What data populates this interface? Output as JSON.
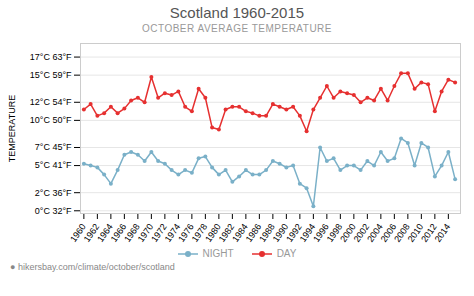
{
  "chart_data": {
    "type": "line",
    "title": "Scotland 1960-2015",
    "subtitle": "OCTOBER AVERAGE TEMPERATURE",
    "ylabel": "TEMPERATURE",
    "annotations": [
      "● hikersbay.com/climate/october/scotland"
    ],
    "x": [
      1960,
      1961,
      1962,
      1963,
      1964,
      1965,
      1966,
      1967,
      1968,
      1969,
      1970,
      1971,
      1972,
      1973,
      1974,
      1975,
      1976,
      1977,
      1978,
      1979,
      1980,
      1981,
      1982,
      1983,
      1984,
      1985,
      1986,
      1987,
      1988,
      1989,
      1990,
      1991,
      1992,
      1993,
      1994,
      1995,
      1996,
      1997,
      1998,
      1999,
      2000,
      2001,
      2002,
      2003,
      2004,
      2005,
      2006,
      2007,
      2008,
      2009,
      2010,
      2011,
      2012,
      2013,
      2014,
      2015
    ],
    "series": [
      {
        "name": "NIGHT",
        "color": "#7ab0c8",
        "marker": "circle",
        "values": [
          5.2,
          5.0,
          4.8,
          4.0,
          3.0,
          4.5,
          6.2,
          6.5,
          6.2,
          5.5,
          6.5,
          5.5,
          5.2,
          4.5,
          4.0,
          4.5,
          4.2,
          5.8,
          6.0,
          4.8,
          4.0,
          4.5,
          3.2,
          3.8,
          4.5,
          4.0,
          4.0,
          4.5,
          5.5,
          5.2,
          4.8,
          5.0,
          3.0,
          2.5,
          0.5,
          7.0,
          5.5,
          5.8,
          4.5,
          5.0,
          5.0,
          4.5,
          5.5,
          5.0,
          6.5,
          5.5,
          5.8,
          8.0,
          7.5,
          5.0,
          7.5,
          7.0,
          3.8,
          5.0,
          6.5,
          3.5
        ]
      },
      {
        "name": "DAY",
        "color": "#e63030",
        "marker": "circle",
        "values": [
          11.2,
          11.8,
          10.5,
          10.8,
          11.5,
          10.8,
          11.3,
          12.2,
          12.5,
          12.0,
          14.8,
          12.5,
          13.0,
          12.8,
          13.2,
          11.5,
          11.0,
          13.5,
          12.5,
          9.2,
          9.0,
          11.2,
          11.5,
          11.5,
          11.0,
          10.8,
          10.5,
          10.5,
          11.8,
          11.5,
          11.2,
          11.5,
          10.5,
          8.8,
          11.2,
          12.5,
          13.8,
          12.5,
          13.2,
          13.0,
          12.8,
          12.0,
          12.5,
          12.2,
          13.5,
          12.2,
          13.8,
          15.2,
          15.2,
          13.5,
          14.2,
          14.0,
          11.0,
          13.2,
          14.5,
          14.2
        ]
      }
    ],
    "xlim": [
      1959.5,
      2015.8
    ],
    "xticks": [
      1960,
      1962,
      1964,
      1966,
      1968,
      1970,
      1972,
      1974,
      1976,
      1978,
      1980,
      1982,
      1984,
      1986,
      1988,
      1990,
      1992,
      1994,
      1996,
      1998,
      2000,
      2002,
      2004,
      2006,
      2008,
      2010,
      2012,
      2014
    ],
    "ylim": [
      -0.3,
      18.5
    ],
    "yticks": [
      {
        "value": 0,
        "label": "0°C 32°F"
      },
      {
        "value": 2,
        "label": "2°C 36°F"
      },
      {
        "value": 5,
        "label": "5°C 41°F"
      },
      {
        "value": 7,
        "label": "7°C 45°F"
      },
      {
        "value": 10,
        "label": "10°C 50°F"
      },
      {
        "value": 12,
        "label": "12°C 54°F"
      },
      {
        "value": 15,
        "label": "15°C 59°F"
      },
      {
        "value": 17,
        "label": "17°C 63°F"
      }
    ],
    "grid": true,
    "legend": "bottom"
  }
}
